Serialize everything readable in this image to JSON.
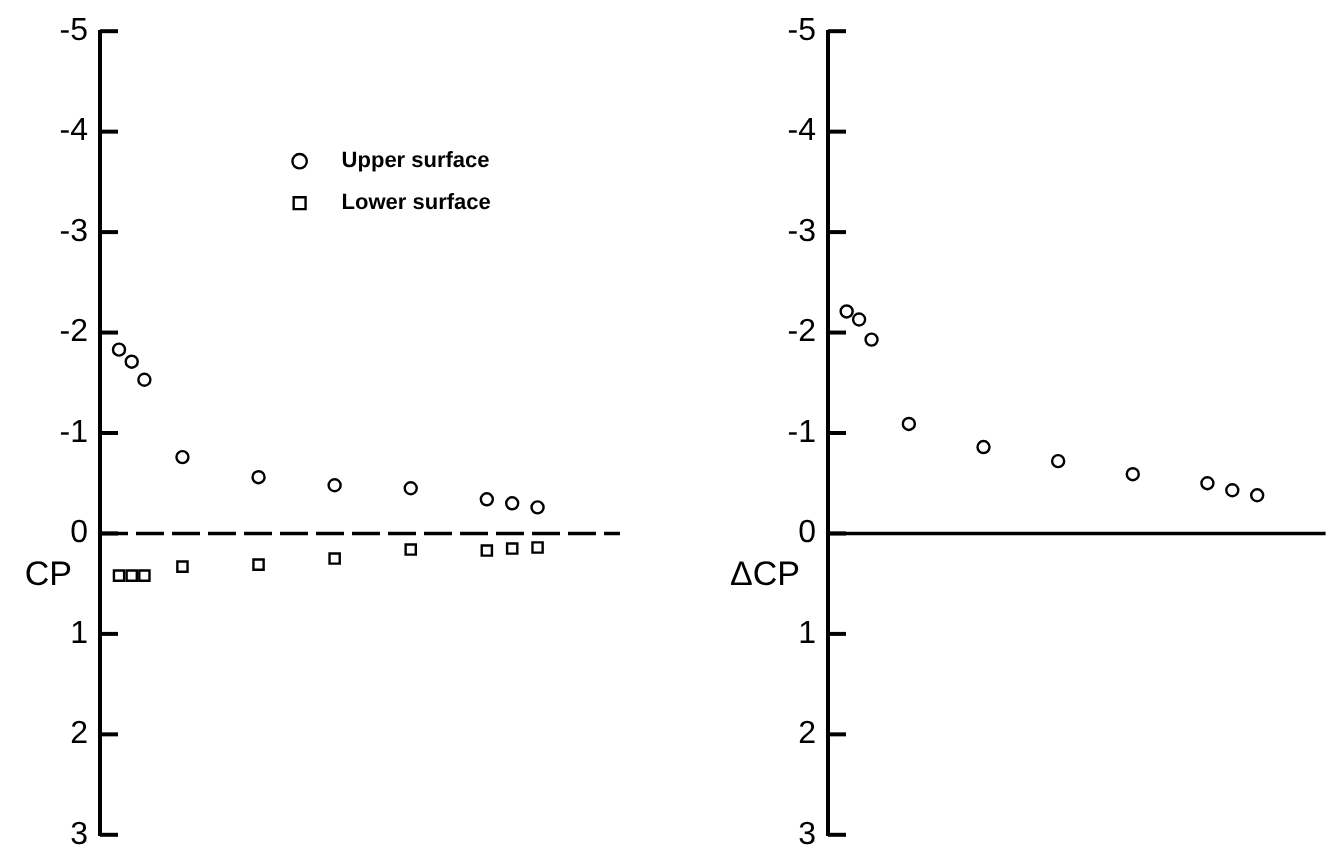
{
  "chart_data": [
    {
      "type": "scatter",
      "ylabel": "CP",
      "legend": "top",
      "tick_labels": "y",
      "categories": [
        null,
        null,
        null,
        null,
        null,
        null,
        null,
        null,
        null,
        null,
        null,
        null,
        null,
        null,
        null,
        null,
        null,
        null,
        null,
        null,
        null,
        null,
        null,
        null,
        null,
        null,
        null,
        null,
        null,
        null,
        null,
        null,
        null,
        null,
        null,
        null,
        null,
        null,
        null,
        null,
        null
      ],
      "series": [
        {
          "name": "Upper surface",
          "color": "#000000",
          "marker": "circle",
          "values": [
            null,
            -1.83,
            -1.71,
            -1.53,
            null,
            null,
            -0.76,
            null,
            null,
            null,
            null,
            null,
            -0.56,
            null,
            null,
            null,
            null,
            null,
            -0.48,
            null,
            null,
            null,
            null,
            null,
            -0.45,
            null,
            null,
            null,
            null,
            null,
            -0.34,
            null,
            -0.3,
            null,
            -0.26,
            null,
            null,
            null,
            null,
            null,
            null
          ]
        },
        {
          "name": "Lower surface",
          "color": "#000000",
          "marker": "square",
          "values": [
            null,
            0.42,
            0.42,
            0.42,
            null,
            null,
            0.33,
            null,
            null,
            null,
            null,
            null,
            0.31,
            null,
            null,
            null,
            null,
            null,
            0.25,
            null,
            null,
            null,
            null,
            null,
            0.16,
            null,
            null,
            null,
            null,
            null,
            0.17,
            null,
            0.15,
            null,
            0.14,
            null,
            null,
            null,
            null,
            null,
            null
          ]
        }
      ],
      "ylim": [
        3,
        -5
      ],
      "yticks": [
        -5,
        -4,
        -3,
        -2,
        -1,
        0,
        1,
        2,
        3
      ],
      "ref_lines": [
        {
          "axis": "y",
          "value": 0,
          "color": "#000000",
          "line_style": "dashed"
        }
      ]
    },
    {
      "type": "scatter",
      "ylabel": "ΔCP",
      "tick_labels": "y",
      "categories": [
        null,
        null,
        null,
        null,
        null,
        null,
        null,
        null,
        null,
        null,
        null,
        null,
        null,
        null,
        null,
        null,
        null,
        null,
        null,
        null,
        null,
        null,
        null,
        null,
        null,
        null,
        null,
        null,
        null,
        null,
        null,
        null,
        null,
        null,
        null,
        null,
        null,
        null,
        null,
        null
      ],
      "series": [
        {
          "color": "#000000",
          "marker": "circle",
          "values": [
            null,
            -2.21,
            -2.13,
            -1.93,
            null,
            null,
            -1.09,
            null,
            null,
            null,
            null,
            null,
            -0.86,
            null,
            null,
            null,
            null,
            null,
            -0.72,
            null,
            null,
            null,
            null,
            null,
            -0.59,
            null,
            null,
            null,
            null,
            null,
            -0.5,
            null,
            -0.43,
            null,
            -0.38,
            null,
            null,
            null,
            null,
            null
          ]
        }
      ],
      "ylim": [
        3,
        -5
      ],
      "yticks": [
        -5,
        -4,
        -3,
        -2,
        -1,
        0,
        1,
        2,
        3
      ],
      "ref_lines": [
        {
          "axis": "y",
          "value": 0,
          "color": "#000000",
          "line_style": "solid"
        }
      ]
    }
  ]
}
